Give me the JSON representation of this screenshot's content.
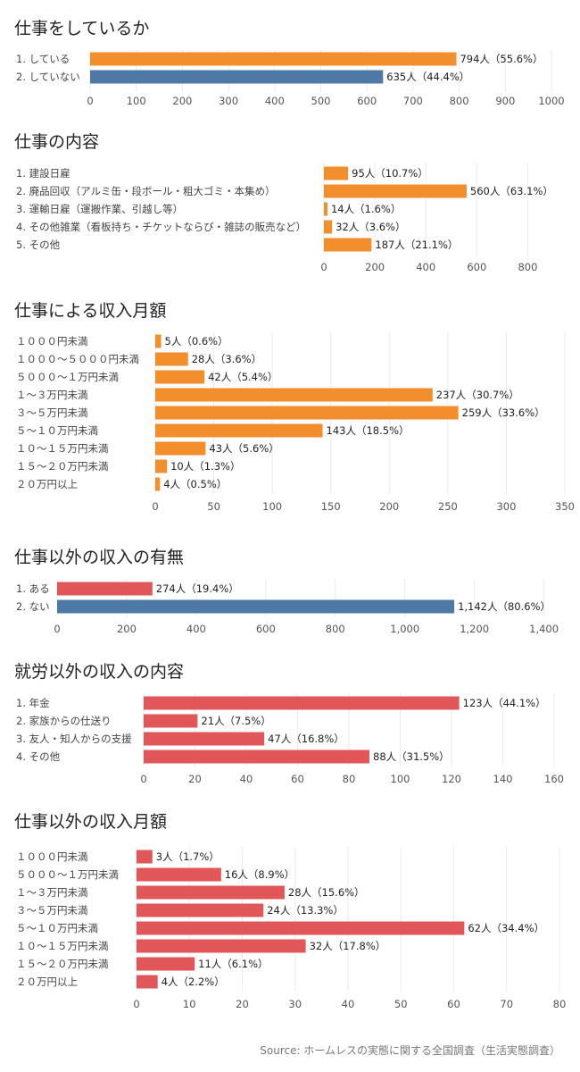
{
  "source": "Source: ホームレスの実態に関する全国調査（生活実態調査）",
  "colors": {
    "orange": "#f28e2b",
    "blue": "#4e79a7",
    "red": "#e15759"
  },
  "chart_data": [
    {
      "type": "bar",
      "title": "仕事をしているか",
      "categories": [
        "1. している",
        "2. していない"
      ],
      "values": [
        794,
        635
      ],
      "labels": [
        "794人（55.6%）",
        "635人（44.4%）"
      ],
      "colors": [
        "orange",
        "blue"
      ],
      "xlim": [
        0,
        1000
      ],
      "ticks": [
        0,
        100,
        200,
        300,
        400,
        500,
        600,
        700,
        800,
        900,
        1000
      ]
    },
    {
      "type": "bar",
      "title": "仕事の内容",
      "categories": [
        "1. 建設日雇",
        "2. 廃品回収（アルミ缶・段ボール・粗大ゴミ・本集め）",
        "3. 運輸日雇（運搬作業、引越し等）",
        "4. その他雑業（看板持ち・チケットならび・雑誌の販売など）",
        "5. その他"
      ],
      "values": [
        95,
        560,
        14,
        32,
        187
      ],
      "labels": [
        "95人（10.7%）",
        "560人（63.1%）",
        "14人（1.6%）",
        "32人（3.6%）",
        "187人（21.1%）"
      ],
      "colors": [
        "orange",
        "orange",
        "orange",
        "orange",
        "orange"
      ],
      "xlim": [
        0,
        900
      ],
      "ticks": [
        0,
        200,
        400,
        600,
        800
      ]
    },
    {
      "type": "bar",
      "title": "仕事による収入月額",
      "categories": [
        "１０００円未満",
        "１０００～５０００円未満",
        "５０００～１万円未満",
        "１～３万円未満",
        "３～５万円未満",
        "５～１０万円未満",
        "１０～１５万円未満",
        "１５～２０万円未満",
        "２０万円以上"
      ],
      "values": [
        5,
        28,
        42,
        237,
        259,
        143,
        43,
        10,
        4
      ],
      "labels": [
        "5人（0.6%）",
        "28人（3.6%）",
        "42人（5.4%）",
        "237人（30.7%）",
        "259人（33.6%）",
        "143人（18.5%）",
        "43人（5.6%）",
        "10人（1.3%）",
        "4人（0.5%）"
      ],
      "colors": [
        "orange",
        "orange",
        "orange",
        "orange",
        "orange",
        "orange",
        "orange",
        "orange",
        "orange"
      ],
      "xlim": [
        0,
        350
      ],
      "ticks": [
        0,
        50,
        100,
        150,
        200,
        250,
        300,
        350
      ]
    },
    {
      "type": "bar",
      "title": "仕事以外の収入の有無",
      "categories": [
        "1. ある",
        "2. ない"
      ],
      "values": [
        274,
        1142
      ],
      "labels": [
        "274人（19.4%）",
        "1,142人（80.6%）"
      ],
      "colors": [
        "red",
        "blue"
      ],
      "xlim": [
        0,
        1460
      ],
      "ticks": [
        0,
        200,
        400,
        600,
        800,
        1000,
        1200,
        1400
      ],
      "tick_labels": [
        "0",
        "200",
        "400",
        "600",
        "800",
        "1,000",
        "1,200",
        "1,400"
      ]
    },
    {
      "type": "bar",
      "title": "就労以外の収入の内容",
      "categories": [
        "1. 年金",
        "2. 家族からの仕送り",
        "3. 友人・知人からの支援",
        "4. その他"
      ],
      "values": [
        123,
        21,
        47,
        88
      ],
      "labels": [
        "123人（44.1%）",
        "21人（7.5%）",
        "47人（16.8%）",
        "88人（31.5%）"
      ],
      "colors": [
        "red",
        "red",
        "red",
        "red"
      ],
      "xlim": [
        0,
        160
      ],
      "ticks": [
        0,
        20,
        40,
        60,
        80,
        100,
        120,
        140,
        160
      ]
    },
    {
      "type": "bar",
      "title": "仕事以外の収入月額",
      "categories": [
        "１０００円未満",
        "５０００～１万円未満",
        "１～３万円未満",
        "３～５万円未満",
        "５～１０万円未満",
        "１０～１５万円未満",
        "１５～２０万円未満",
        "２０万円以上"
      ],
      "values": [
        3,
        16,
        28,
        24,
        62,
        32,
        11,
        4
      ],
      "labels": [
        "3人（1.7%）",
        "16人（8.9%）",
        "28人（15.6%）",
        "24人（13.3%）",
        "62人（34.4%）",
        "32人（17.8%）",
        "11人（6.1%）",
        "4人（2.2%）"
      ],
      "colors": [
        "red",
        "red",
        "red",
        "red",
        "red",
        "red",
        "red",
        "red"
      ],
      "xlim": [
        0,
        80
      ],
      "ticks": [
        0,
        10,
        20,
        30,
        40,
        50,
        60,
        70,
        80
      ]
    }
  ]
}
